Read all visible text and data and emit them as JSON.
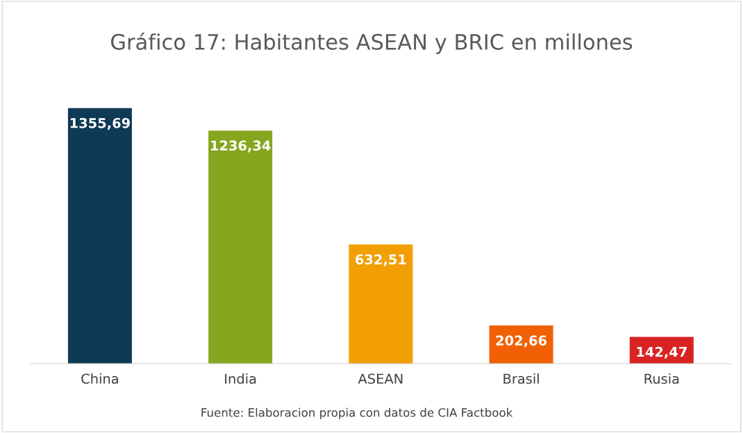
{
  "chart_data": {
    "type": "bar",
    "title": "Gráfico 17: Habitantes ASEAN y BRIC en millones",
    "categories": [
      "China",
      "India",
      "ASEAN",
      "Brasil",
      "Rusia"
    ],
    "values": [
      1355.69,
      1236.34,
      632.51,
      202.66,
      142.47
    ],
    "colors": [
      "#0f3a56",
      "#87a61f",
      "#f29f05",
      "#f26005",
      "#d92323"
    ],
    "value_labels": [
      "1355,69",
      "1236,34",
      "632,51",
      "202,66",
      "142,47"
    ],
    "annotations": [
      "Fuente: Elaboracion propia con datos de CIA Factbook"
    ],
    "grid": false,
    "legend": false
  }
}
